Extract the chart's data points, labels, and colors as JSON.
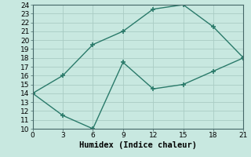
{
  "xlabel": "Humidex (Indice chaleur)",
  "x": [
    0,
    3,
    6,
    9,
    12,
    15,
    18,
    21
  ],
  "y_upper": [
    14,
    16,
    19.5,
    21,
    23.5,
    24,
    21.5,
    18
  ],
  "y_lower": [
    14,
    11.5,
    10,
    17.5,
    14.5,
    15,
    16.5,
    18
  ],
  "line_color": "#2a7a6a",
  "bg_color": "#c8e8e0",
  "grid_color": "#aaccc4",
  "xlim": [
    0,
    21
  ],
  "ylim": [
    10,
    24
  ],
  "xticks": [
    0,
    3,
    6,
    9,
    12,
    15,
    18,
    21
  ],
  "yticks": [
    10,
    11,
    12,
    13,
    14,
    15,
    16,
    17,
    18,
    19,
    20,
    21,
    22,
    23,
    24
  ],
  "marker": "+",
  "markersize": 4,
  "linewidth": 1.0,
  "label_fontsize": 7.5,
  "tick_fontsize": 6.5
}
